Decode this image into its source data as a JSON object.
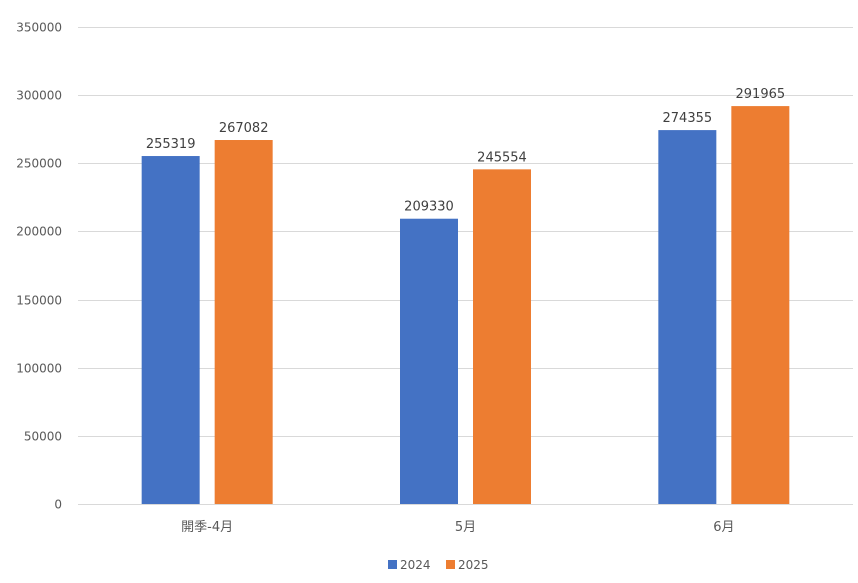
{
  "chart_data": {
    "type": "bar",
    "title": "",
    "xlabel": "",
    "ylabel": "",
    "categories": [
      "開季-4月",
      "5月",
      "6月"
    ],
    "series": [
      {
        "name": "2024",
        "values": [
          255319,
          209330,
          274355
        ],
        "color": "#4472C4"
      },
      {
        "name": "2025",
        "values": [
          267082,
          245554,
          291965
        ],
        "color": "#ED7D31"
      }
    ],
    "ylim": [
      0,
      350000
    ],
    "yticks": [
      0,
      50000,
      100000,
      150000,
      200000,
      250000,
      300000,
      350000
    ],
    "grid": true,
    "legend_position": "bottom",
    "data_labels": true
  }
}
